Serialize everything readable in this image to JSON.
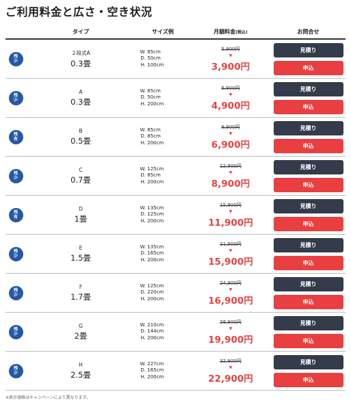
{
  "title": "ご利用料金と広さ・空き状況",
  "columns": {
    "type": "タイプ",
    "size": "サイズ例",
    "price": "月額料金",
    "price_tax": "(税込)",
    "contact": "お問合せ"
  },
  "buttons": {
    "quote": "見積り",
    "apply": "申込"
  },
  "rows": [
    {
      "badge": [
        "残",
        "少"
      ],
      "type": "２段式A",
      "area": "0.3畳",
      "w": "85cm",
      "d": "50cm",
      "h": "100cm",
      "old": "5,900円",
      "new": "3,900円"
    },
    {
      "badge": [
        "残",
        "少"
      ],
      "type": "A",
      "area": "0.3畳",
      "w": "85cm",
      "d": "50cm",
      "h": "200cm",
      "old": "6,900円",
      "new": "4,900円"
    },
    {
      "badge": [
        "残",
        "有"
      ],
      "type": "B",
      "area": "0.5畳",
      "w": "85cm",
      "d": "85cm",
      "h": "200cm",
      "old": "9,900円",
      "new": "6,900円"
    },
    {
      "badge": [
        "残",
        "少"
      ],
      "type": "C",
      "area": "0.7畳",
      "w": "125cm",
      "d": "85cm",
      "h": "200cm",
      "old": "12,900円",
      "new": "8,900円"
    },
    {
      "badge": [
        "残",
        "有"
      ],
      "type": "D",
      "area": "1畳",
      "w": "135cm",
      "d": "125cm",
      "h": "200cm",
      "old": "15,900円",
      "new": "11,900円"
    },
    {
      "badge": [
        "残",
        "少"
      ],
      "type": "E",
      "area": "1.5畳",
      "w": "135cm",
      "d": "165cm",
      "h": "200cm",
      "old": "21,900円",
      "new": "15,900円"
    },
    {
      "badge": [
        "残",
        "少"
      ],
      "type": "F",
      "area": "1.7畳",
      "w": "125cm",
      "d": "220cm",
      "h": "200cm",
      "old": "24,900円",
      "new": "16,900円"
    },
    {
      "badge": [
        "残",
        "少"
      ],
      "type": "G",
      "area": "2畳",
      "w": "210cm",
      "d": "144cm",
      "h": "200cm",
      "old": "28,900円",
      "new": "19,900円"
    },
    {
      "badge": [
        "残",
        "少"
      ],
      "type": "H",
      "area": "2.5畳",
      "w": "227cm",
      "d": "165cm",
      "h": "200cm",
      "old": "32,900円",
      "new": "22,900円"
    }
  ],
  "dim_labels": {
    "w": "W.",
    "d": "D.",
    "h": "H."
  },
  "arrow_icon": "▼",
  "note": "※表示価格はキャンペーンにより異なります。",
  "colors": {
    "badge": "#2558a7",
    "price": "#e84343",
    "quote_button": "#343b4a",
    "apply_button": "#ea3f41"
  }
}
